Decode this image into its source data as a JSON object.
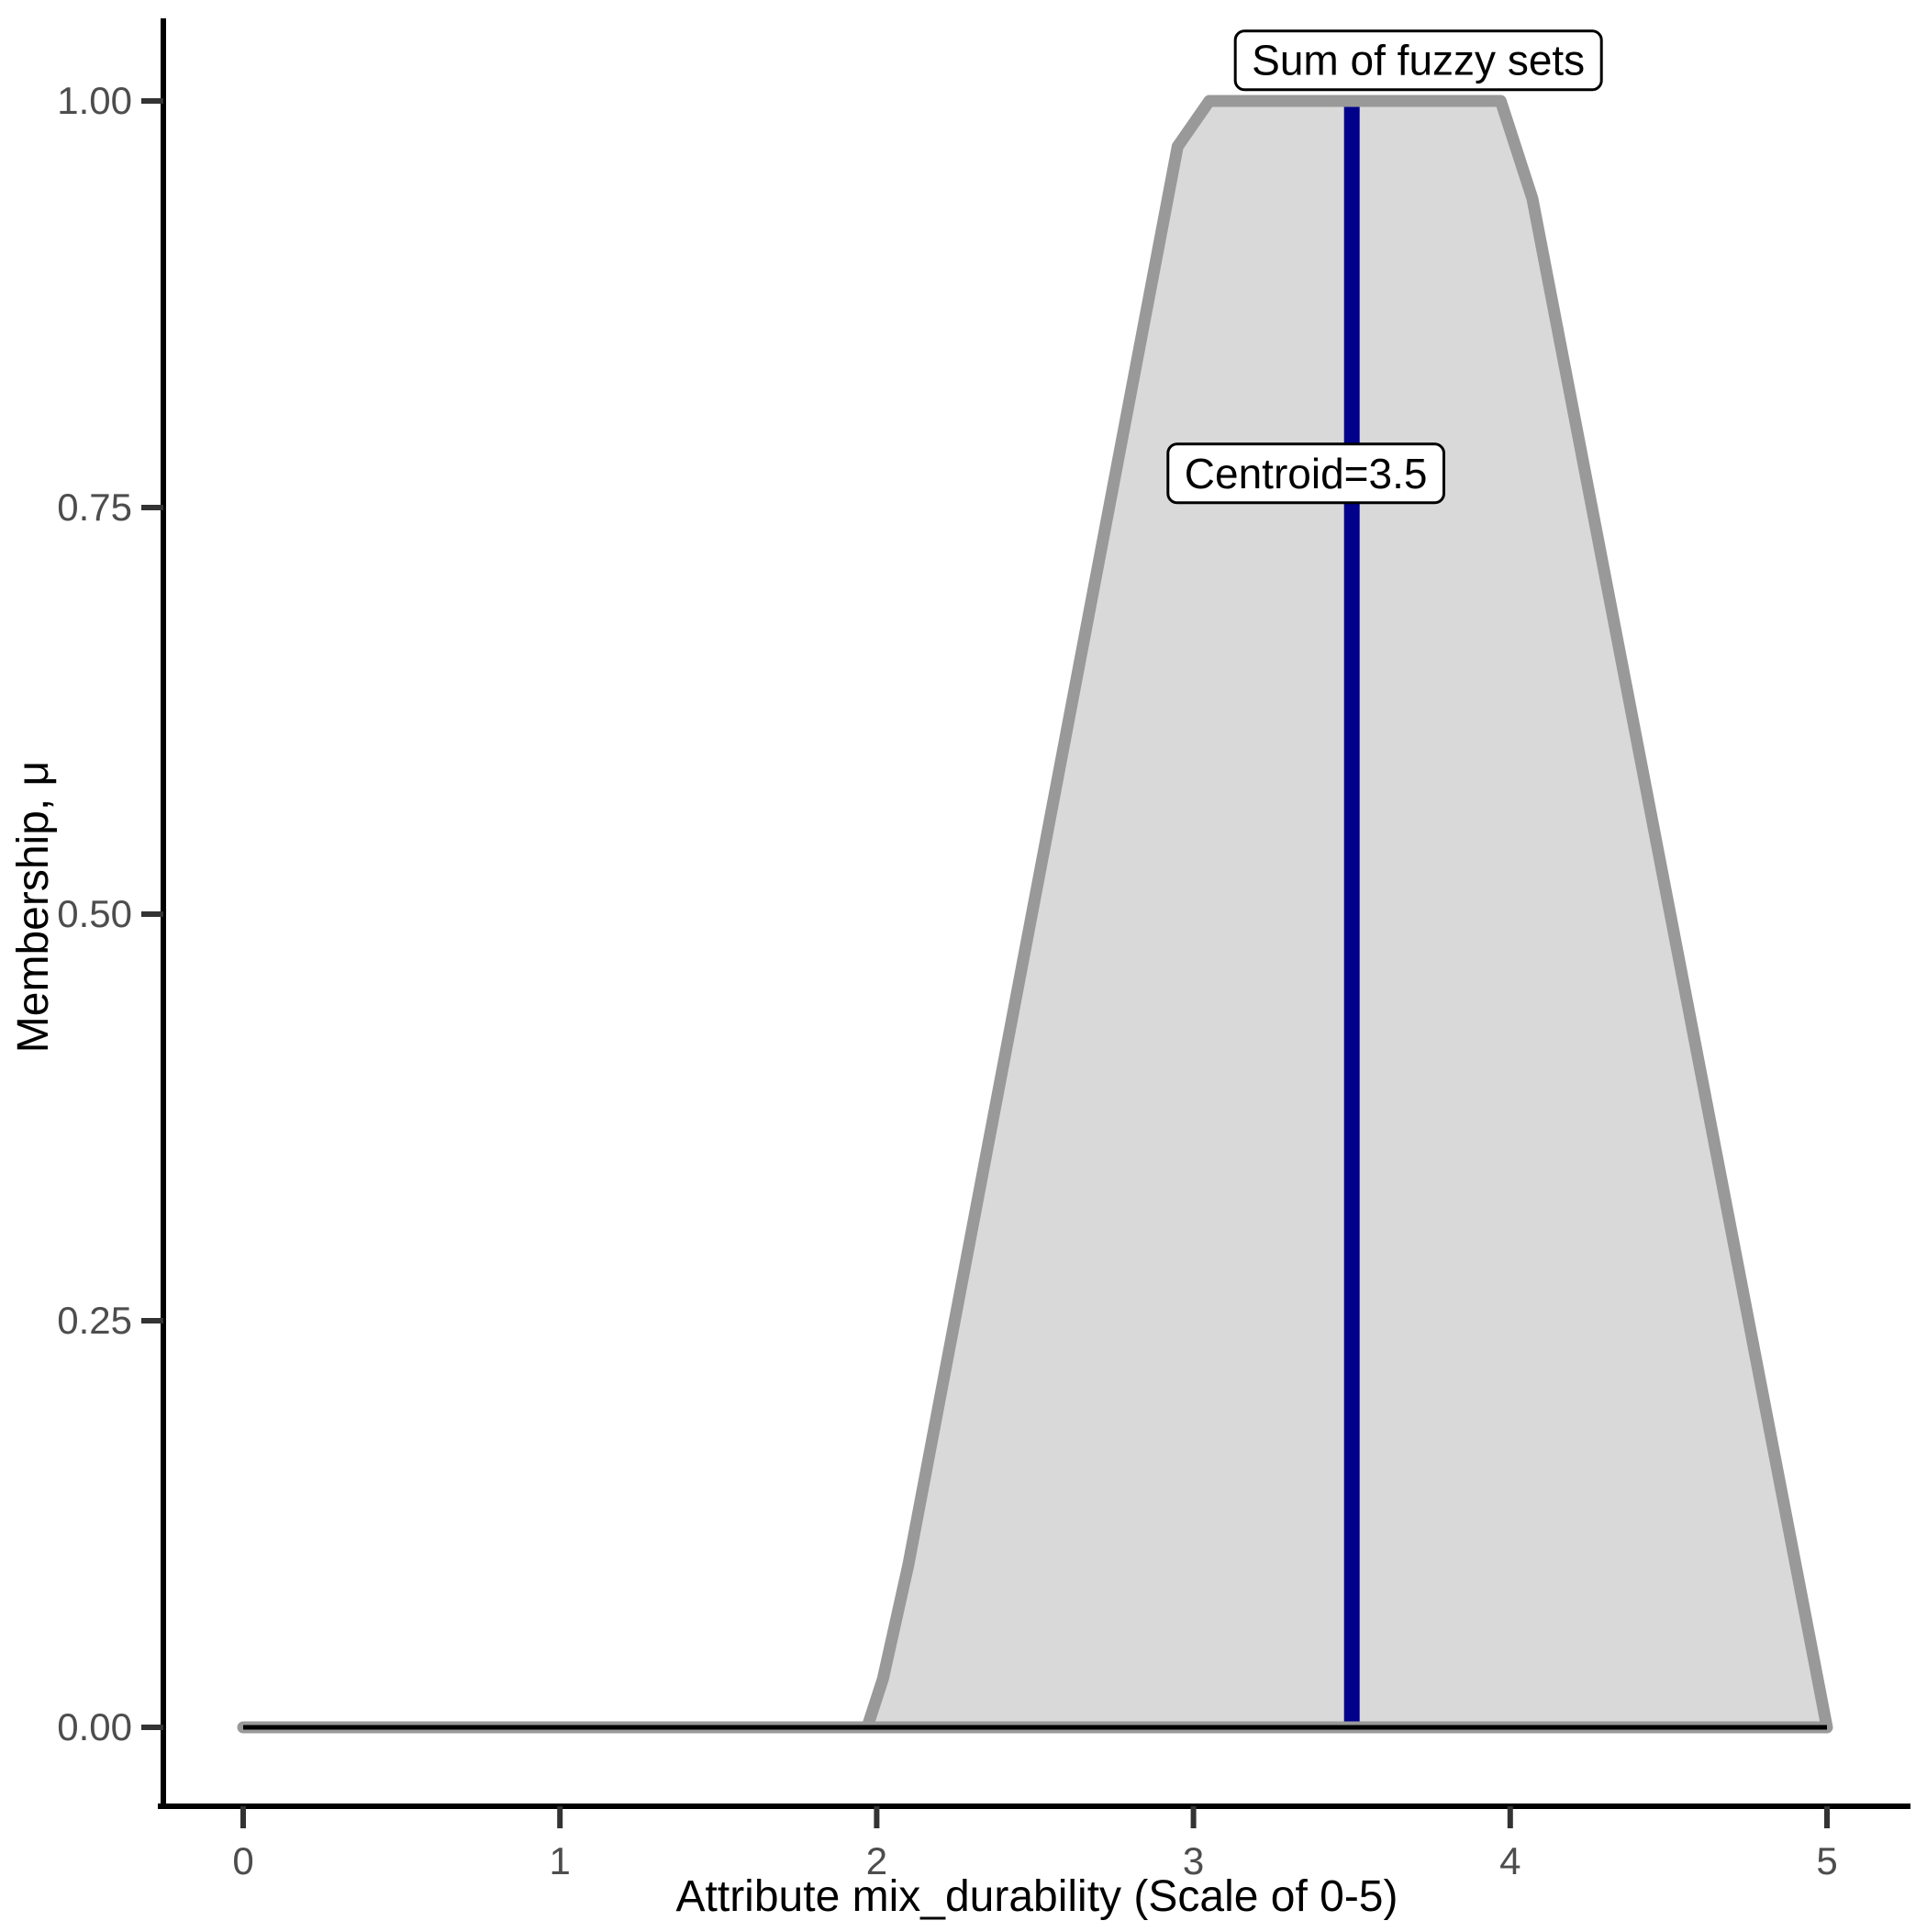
{
  "chart_data": {
    "type": "area",
    "title": "",
    "xlabel": "Attribute mix_durability (Scale of 0-5)",
    "ylabel": "Membership, μ",
    "xlim": [
      0,
      5
    ],
    "ylim": [
      0,
      1
    ],
    "grid": false,
    "legend_position": "none",
    "x_tick_values": [
      0,
      1,
      2,
      3,
      4,
      5
    ],
    "x_tick_labels": [
      "0",
      "1",
      "2",
      "3",
      "4",
      "5"
    ],
    "y_tick_values": [
      0,
      0.25,
      0.5,
      0.75,
      1
    ],
    "y_tick_labels": [
      "0.00",
      "0.25",
      "0.50",
      "0.75",
      "1.00"
    ],
    "membership_curve": {
      "name": "Sum of fuzzy sets",
      "points": [
        [
          0,
          0
        ],
        [
          1.97,
          0
        ],
        [
          2.02,
          0.03
        ],
        [
          2.1,
          0.1
        ],
        [
          2.95,
          0.972
        ],
        [
          3.05,
          1.0
        ],
        [
          3.97,
          1.0
        ],
        [
          4.07,
          0.94
        ],
        [
          5,
          0
        ]
      ]
    },
    "baseline": {
      "points": [
        [
          0,
          0
        ],
        [
          5,
          0
        ]
      ]
    },
    "centroid": {
      "x": 3.5,
      "y_from": 0,
      "y_to": 1
    },
    "annotations": [
      {
        "id": "sum-of-fuzzy-sets-label",
        "text": "Sum of fuzzy sets",
        "x": 3.71,
        "y": 1.025
      },
      {
        "id": "centroid-label",
        "text": "Centroid=3.5",
        "x": 3.355,
        "y": 0.771
      }
    ],
    "colors": {
      "area_fill": "#d9d9d9",
      "area_outline": "#999999",
      "baseline": "#000000",
      "centroid_line": "#00008B",
      "axis": "#000000",
      "tick_label": "#4d4d4d"
    }
  }
}
